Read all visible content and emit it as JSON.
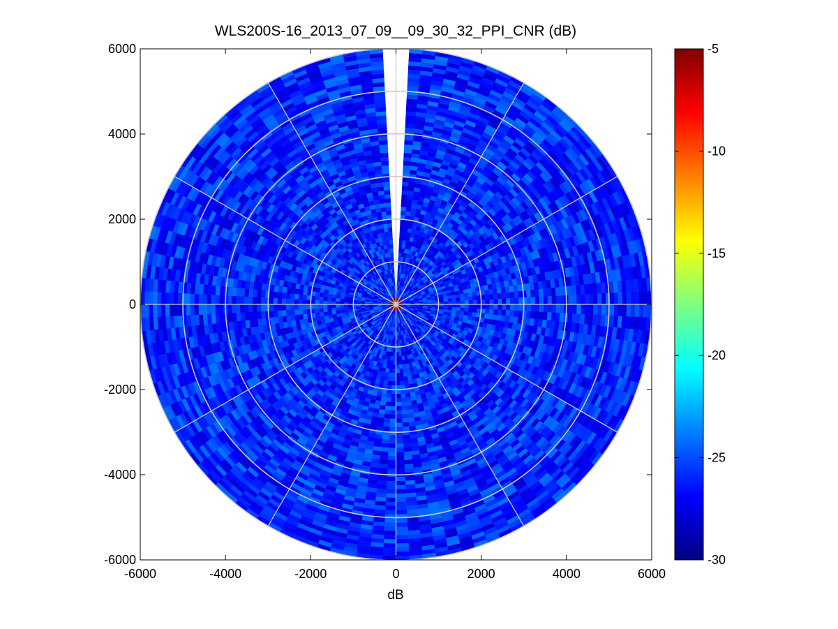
{
  "chart_data": {
    "type": "heatmap",
    "subtype": "polar-ppi",
    "title": "WLS200S-16_2013_07_09__09_30_32_PPI_CNR (dB)",
    "xlabel": "dB",
    "ylabel": "",
    "xlim": [
      -6000,
      6000
    ],
    "ylim": [
      -6000,
      6000
    ],
    "x_ticks": [
      "-6000",
      "-4000",
      "-2000",
      "0",
      "2000",
      "4000",
      "6000"
    ],
    "y_ticks": [
      "6000",
      "4000",
      "2000",
      "0",
      "-2000",
      "-4000",
      "-6000"
    ],
    "x_tick_values": [
      -6000,
      -4000,
      -2000,
      0,
      2000,
      4000,
      6000
    ],
    "y_tick_values": [
      6000,
      4000,
      2000,
      0,
      -2000,
      -4000,
      -6000
    ],
    "max_range": 6000,
    "range_rings": [
      1000,
      2000,
      3000,
      4000,
      5000,
      6000
    ],
    "spoke_angles_deg": [
      0,
      30,
      60,
      90,
      120,
      150,
      180,
      210,
      240,
      270,
      300,
      330
    ],
    "missing_sector_deg": [
      -3.5,
      3.5
    ],
    "grid": true,
    "typical_value_db": -26,
    "center_value_db": -5,
    "colorbar": {
      "colormap": "jet",
      "range": [
        -30,
        -5
      ],
      "tick_values": [
        -5,
        -10,
        -15,
        -20,
        -25,
        -30
      ],
      "tick_labels": [
        "-5",
        "-10",
        "-15",
        "-20",
        "-25",
        "-30"
      ]
    }
  }
}
